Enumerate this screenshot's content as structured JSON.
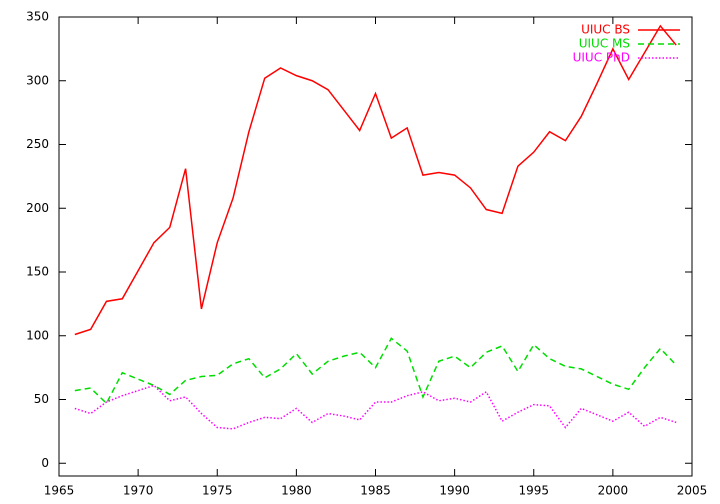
{
  "chart_data": {
    "type": "line",
    "x": [
      1966,
      1967,
      1968,
      1969,
      1970,
      1971,
      1972,
      1973,
      1974,
      1975,
      1976,
      1977,
      1978,
      1979,
      1980,
      1981,
      1982,
      1983,
      1984,
      1985,
      1986,
      1987,
      1988,
      1989,
      1990,
      1991,
      1992,
      1993,
      1994,
      1995,
      1996,
      1997,
      1998,
      1999,
      2000,
      2001,
      2002,
      2003,
      2004
    ],
    "series": [
      {
        "name": "UIUC BS",
        "color": "#ff0000",
        "dash": "none",
        "values": [
          101,
          105,
          127,
          129,
          151,
          173,
          185,
          231,
          121,
          173,
          208,
          260,
          302,
          310,
          304,
          300,
          293,
          277,
          261,
          290,
          255,
          263,
          226,
          228,
          226,
          216,
          199,
          196,
          233,
          244,
          260,
          253,
          272,
          298,
          325,
          301,
          322,
          343,
          328
        ]
      },
      {
        "name": "UIUC MS",
        "color": "#00dd00",
        "dash": "6,4",
        "values": [
          57,
          59,
          47,
          71,
          66,
          61,
          54,
          65,
          68,
          69,
          78,
          82,
          67,
          74,
          86,
          70,
          80,
          84,
          87,
          75,
          98,
          88,
          52,
          80,
          84,
          75,
          87,
          92,
          72,
          93,
          82,
          76,
          74,
          68,
          62,
          58,
          75,
          90,
          77
        ]
      },
      {
        "name": "UIUC PhD",
        "color": "#ff00ff",
        "dash": "1.5,2",
        "values": [
          43,
          39,
          48,
          53,
          57,
          61,
          49,
          52,
          39,
          28,
          27,
          32,
          36,
          35,
          43,
          32,
          39,
          37,
          34,
          48,
          48,
          53,
          56,
          49,
          51,
          48,
          56,
          33,
          40,
          46,
          45,
          28,
          43,
          38,
          33,
          40,
          29,
          36,
          32
        ]
      }
    ],
    "xlim": [
      1965,
      2005
    ],
    "xticks": [
      1965,
      1970,
      1975,
      1980,
      1985,
      1990,
      1995,
      2000,
      2005
    ],
    "ylim": [
      -10,
      350
    ],
    "yticks": [
      0,
      50,
      100,
      150,
      200,
      250,
      300,
      350
    ],
    "legend": "top-right"
  }
}
